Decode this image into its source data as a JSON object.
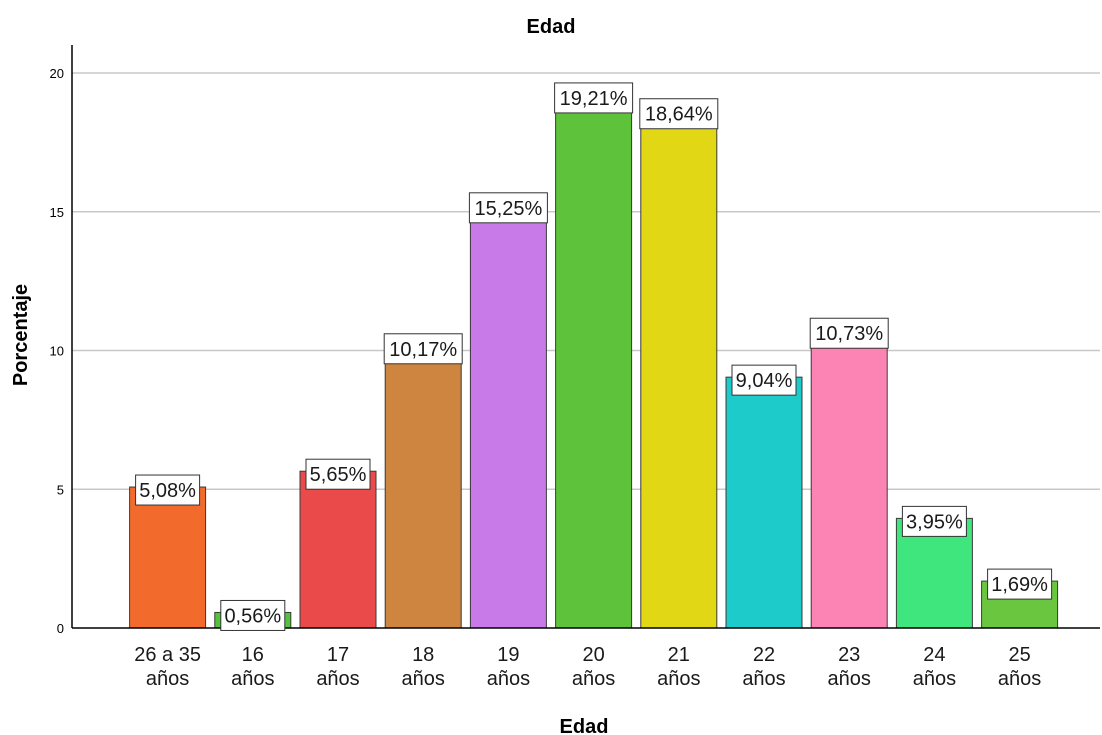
{
  "chart_data": {
    "type": "bar",
    "title": "Edad",
    "xlabel": "Edad",
    "ylabel": "Porcentaje",
    "ylim": [
      0,
      20
    ],
    "yticks": [
      0,
      5,
      10,
      15,
      20
    ],
    "grid": true,
    "categories": [
      [
        "26 a 35",
        "años"
      ],
      [
        "16",
        "años"
      ],
      [
        "17",
        "años"
      ],
      [
        "18",
        "años"
      ],
      [
        "19",
        "años"
      ],
      [
        "20",
        "años"
      ],
      [
        "21",
        "años"
      ],
      [
        "22",
        "años"
      ],
      [
        "23",
        "años"
      ],
      [
        "24",
        "años"
      ],
      [
        "25",
        "años"
      ]
    ],
    "values": [
      5.08,
      0.56,
      5.65,
      10.17,
      15.25,
      19.21,
      18.64,
      9.04,
      10.73,
      3.95,
      1.69
    ],
    "data_labels": [
      "5,08%",
      "0,56%",
      "5,65%",
      "10,17%",
      "15,25%",
      "19,21%",
      "18,64%",
      "9,04%",
      "10,73%",
      "3,95%",
      "1,69%"
    ],
    "colors": [
      "#f26b2c",
      "#55c339",
      "#ea4a4a",
      "#cd853f",
      "#c87ae8",
      "#5ec23a",
      "#e2d714",
      "#1ecbcb",
      "#fc84b4",
      "#3fe67d",
      "#6ac63f"
    ],
    "grid_color": "#c8c8c8"
  }
}
